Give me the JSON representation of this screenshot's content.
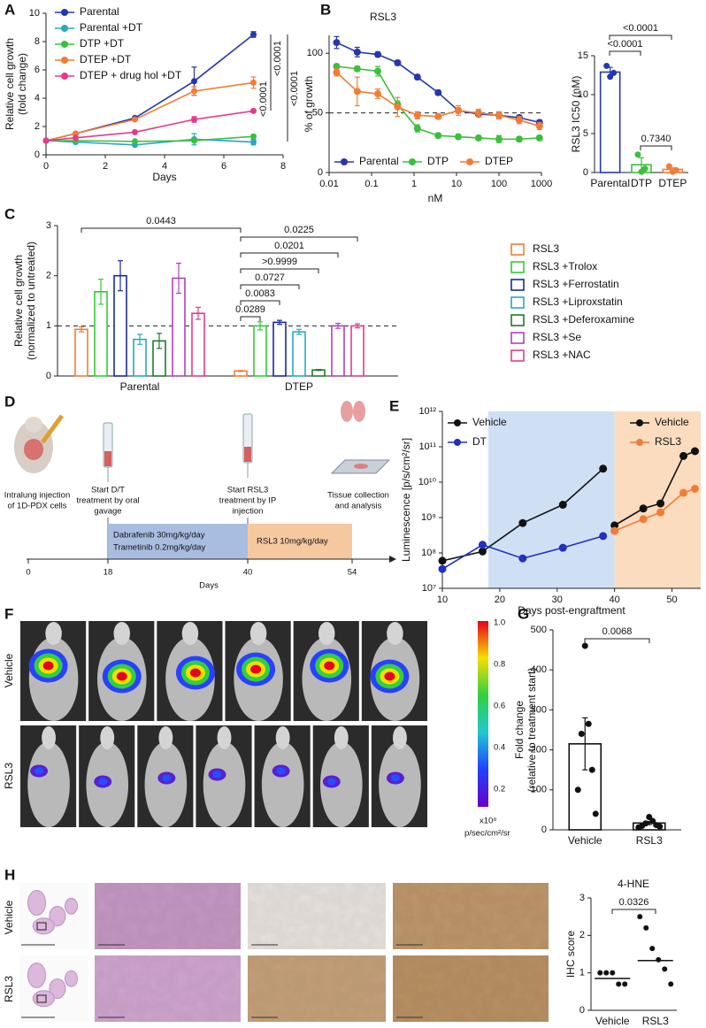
{
  "panel_labels": [
    "A",
    "B",
    "C",
    "D",
    "E",
    "F",
    "G",
    "H"
  ],
  "chart_data": [
    {
      "type": "line",
      "x": [
        0,
        1,
        3,
        5,
        7
      ],
      "x_label": "Days",
      "y_label": [
        "Relative cell growth",
        "(fold change)"
      ],
      "xlim": [
        0,
        8
      ],
      "xticks": [
        0,
        2,
        4,
        6,
        8
      ],
      "ylim": [
        0,
        10
      ],
      "yticks": [
        0,
        2,
        4,
        6,
        8,
        10
      ],
      "series": [
        {
          "name": "Parental",
          "color": "#2636b0",
          "values": [
            1,
            1.5,
            2.6,
            5.2,
            8.5
          ],
          "errors": [
            0.05,
            0.1,
            0.1,
            1.0,
            0.2
          ]
        },
        {
          "name": "Parental +DT",
          "color": "#2ba6c4",
          "values": [
            1,
            0.9,
            0.7,
            1.1,
            0.9
          ],
          "errors": [
            0.05,
            0.05,
            0.05,
            0.4,
            0.2
          ]
        },
        {
          "name": "DTP +DT",
          "color": "#3cbf3c",
          "values": [
            1,
            1.0,
            0.95,
            1.0,
            1.3
          ],
          "errors": [
            0.05,
            0.05,
            0.05,
            0.1,
            0.1
          ]
        },
        {
          "name": "DTEP +DT",
          "color": "#f27c36",
          "values": [
            1,
            1.5,
            2.5,
            4.5,
            5.1
          ],
          "errors": [
            0.05,
            0.1,
            0.1,
            0.3,
            0.4
          ]
        },
        {
          "name": "DTEP + drug hol +DT",
          "color": "#e8388c",
          "values": [
            1,
            1.2,
            1.6,
            2.5,
            3.1
          ],
          "errors": [
            0.05,
            0.05,
            0.05,
            0.2,
            0.1
          ]
        }
      ],
      "annotations": [
        "<0.0001",
        "<0.0001",
        "<0.0001"
      ]
    },
    {
      "type": "line",
      "title": "RSL3",
      "log_x": true,
      "x": [
        0.015,
        0.046,
        0.14,
        0.41,
        1.2,
        3.7,
        11,
        33,
        100,
        300,
        900
      ],
      "x_label": "nM",
      "y_label": [
        "% of growth"
      ],
      "xlim": [
        0.01,
        1000
      ],
      "xticks": [
        0.01,
        0.1,
        1,
        10,
        100,
        1000
      ],
      "ylim": [
        0,
        115
      ],
      "yticks": [
        0,
        50,
        100
      ],
      "reference_line": 50,
      "series": [
        {
          "name": "Parental",
          "color": "#2636b0",
          "values": [
            109,
            101,
            99,
            92,
            80,
            67,
            52,
            49,
            48,
            46,
            42
          ],
          "errors": [
            5,
            4,
            2,
            2,
            2,
            2,
            2,
            2,
            2,
            2,
            2
          ]
        },
        {
          "name": "DTP",
          "color": "#3cbf3c",
          "values": [
            89,
            87,
            85,
            57,
            37,
            31,
            30,
            29,
            28,
            28,
            29
          ],
          "errors": [
            2,
            2,
            4,
            3,
            3,
            2,
            2,
            2,
            3,
            2,
            2
          ]
        },
        {
          "name": "DTEP",
          "color": "#f27c36",
          "values": [
            84,
            68,
            66,
            55,
            48,
            47,
            52,
            50,
            48,
            44,
            39
          ],
          "errors": [
            3,
            12,
            4,
            8,
            3,
            2,
            4,
            3,
            3,
            3,
            3
          ]
        }
      ]
    },
    {
      "type": "bar",
      "categories": [
        "Parental",
        "DTP",
        "DTEP"
      ],
      "values": [
        12.9,
        1.0,
        0.4
      ],
      "errors": [
        0.6,
        0.9,
        0.2
      ],
      "colors": [
        "#2636b0",
        "#3cbf3c",
        "#f27c36"
      ],
      "points": [
        [
          12.3,
          12.8,
          13.7
        ],
        [
          0.1,
          0.5,
          2.3
        ],
        [
          0.1,
          0.3,
          0.8
        ]
      ],
      "y_label": [
        "RSL3 IC50 (nM)"
      ],
      "ylim": [
        0,
        15
      ],
      "yticks": [
        0,
        5,
        10,
        15
      ],
      "annotations": [
        "<0.0001",
        "<0.0001",
        "0.7340"
      ]
    },
    {
      "type": "grouped_bar",
      "categories": [
        "Parental",
        "DTEP"
      ],
      "y_label": [
        "Relative cell growth",
        "(normalized to untreated)"
      ],
      "ylim": [
        0,
        3
      ],
      "yticks": [
        0,
        1,
        2,
        3
      ],
      "reference_line": 1,
      "series": [
        {
          "name": "RSL3",
          "color": "#f27c36",
          "values": [
            0.93,
            0.1
          ],
          "errors": [
            0.05,
            0.01
          ]
        },
        {
          "name": "RSL3 +Trolox",
          "color": "#33cc33",
          "values": [
            1.68,
            1.0
          ],
          "errors": [
            0.25,
            0.08
          ]
        },
        {
          "name": "RSL3 +Ferrostatin",
          "color": "#1a2a9a",
          "values": [
            2.0,
            1.07
          ],
          "errors": [
            0.3,
            0.04
          ]
        },
        {
          "name": "RSL3 +Liproxstatin",
          "color": "#2aa8c0",
          "values": [
            0.73,
            0.88
          ],
          "errors": [
            0.1,
            0.05
          ]
        },
        {
          "name": "RSL3 +Deferoxamine",
          "color": "#1f7a2a",
          "values": [
            0.7,
            0.12
          ],
          "errors": [
            0.15,
            0.01
          ]
        },
        {
          "name": "RSL3 +Se",
          "color": "#b040c0",
          "values": [
            1.95,
            1.0
          ],
          "errors": [
            0.3,
            0.05
          ]
        },
        {
          "name": "RSL3 +NAC",
          "color": "#e83a88",
          "values": [
            1.25,
            1.0
          ],
          "errors": [
            0.12,
            0.04
          ]
        }
      ],
      "annotations": [
        "0.0443",
        "0.0289",
        "0.0083",
        "0.0727",
        ">0.9999",
        "0.0201",
        "0.0225"
      ]
    },
    {
      "type": "line",
      "log_y": true,
      "x_label": "Days post-engraftment",
      "y_label": [
        "Luminescence [p/s/cm²/sr]"
      ],
      "xlim": [
        10,
        55
      ],
      "xticks": [
        10,
        20,
        30,
        40,
        50
      ],
      "ylim": [
        10000000.0,
        1000000000000.0
      ],
      "yticks": [
        {
          "value": 10000000.0,
          "label": "10⁷"
        },
        {
          "value": 100000000.0,
          "label": "10⁸"
        },
        {
          "value": 1000000000.0,
          "label": "10⁹"
        },
        {
          "value": 10000000000.0,
          "label": "10¹⁰"
        },
        {
          "value": 100000000000.0,
          "label": "10¹¹"
        },
        {
          "value": 1000000000000.0,
          "label": "10¹²"
        }
      ],
      "shaded": [
        {
          "range": [
            18,
            40
          ],
          "color": "#cfe0f5"
        },
        {
          "range": [
            40,
            55
          ],
          "color": "#fbdcbf"
        }
      ],
      "series": [
        {
          "name": "Vehicle",
          "color": "#111111",
          "x": [
            10,
            17,
            24,
            31,
            38
          ],
          "values": [
            60000000.0,
            110000000.0,
            700000000.0,
            2300000000.0,
            24000000000.0
          ]
        },
        {
          "name": "DT",
          "color": "#2030c0",
          "x": [
            10,
            17,
            24,
            31,
            38
          ],
          "values": [
            35000000.0,
            170000000.0,
            70000000.0,
            140000000.0,
            300000000.0
          ]
        },
        {
          "name": "Vehicle",
          "color": "#111111",
          "x": [
            40,
            45,
            48,
            52,
            54
          ],
          "values": [
            600000000.0,
            1800000000.0,
            2500000000.0,
            55000000000.0,
            75000000000.0
          ]
        },
        {
          "name": "RSL3",
          "color": "#f27c36",
          "x": [
            40,
            45,
            48,
            52,
            54
          ],
          "values": [
            420000000.0,
            900000000.0,
            1400000000.0,
            5000000000.0,
            6500000000.0
          ]
        }
      ]
    },
    {
      "type": "bar",
      "categories": [
        "Vehicle",
        "RSL3"
      ],
      "values": [
        215,
        17
      ],
      "errors": [
        65,
        4
      ],
      "colors": [
        "#111111",
        "#111111"
      ],
      "points": [
        [
          460,
          265,
          240,
          150,
          100,
          40
        ],
        [
          32,
          22,
          16,
          12,
          10,
          8,
          6
        ]
      ],
      "y_label": [
        "Fold change",
        "(relative to treatment start)"
      ],
      "ylim": [
        0,
        500
      ],
      "yticks": [
        0,
        100,
        200,
        300,
        400,
        500
      ],
      "annotations": [
        "0.0068"
      ]
    },
    {
      "type": "dot",
      "title": "4-HNE",
      "categories": [
        "Vehicle",
        "RSL3"
      ],
      "values": [
        0.85,
        1.33
      ],
      "points": [
        [
          1,
          1,
          1,
          0.7,
          0.7
        ],
        [
          2.5,
          2.2,
          1.65,
          1.35,
          1.1,
          0.7
        ]
      ],
      "y_label": [
        "IHC score"
      ],
      "ylim": [
        0,
        3
      ],
      "yticks": [
        0,
        1,
        2,
        3
      ],
      "annotations": [
        "0.0326"
      ]
    }
  ],
  "timeline": {
    "events": [
      [
        "Intralung injection",
        "of 1D-PDX cells"
      ],
      [
        "Start D/T",
        "treatment by oral",
        "gavage"
      ],
      [
        "Start RSL3",
        "treatment by IP",
        "injection"
      ],
      [
        "Tissue collection",
        "and analysis"
      ]
    ],
    "phases": [
      [
        "Dabrafenib 30mg/kg/day",
        "Trametinib 0.2mg/kg/day"
      ],
      [
        "RSL3 10mg/kg/day"
      ]
    ],
    "ticks": [
      "0",
      "18",
      "40",
      "54"
    ],
    "axis_label": "Days"
  },
  "imaging": {
    "rows": [
      "Vehicle",
      "RSL3"
    ],
    "colorbar_ticks": [
      "1.0",
      "0.8",
      "0.6",
      "0.4",
      "0.2"
    ],
    "colorbar_unit": [
      "x10⁸",
      "p/sec/cm²/sr"
    ]
  },
  "histology": {
    "rows": [
      "Vehicle",
      "RSL3"
    ]
  }
}
